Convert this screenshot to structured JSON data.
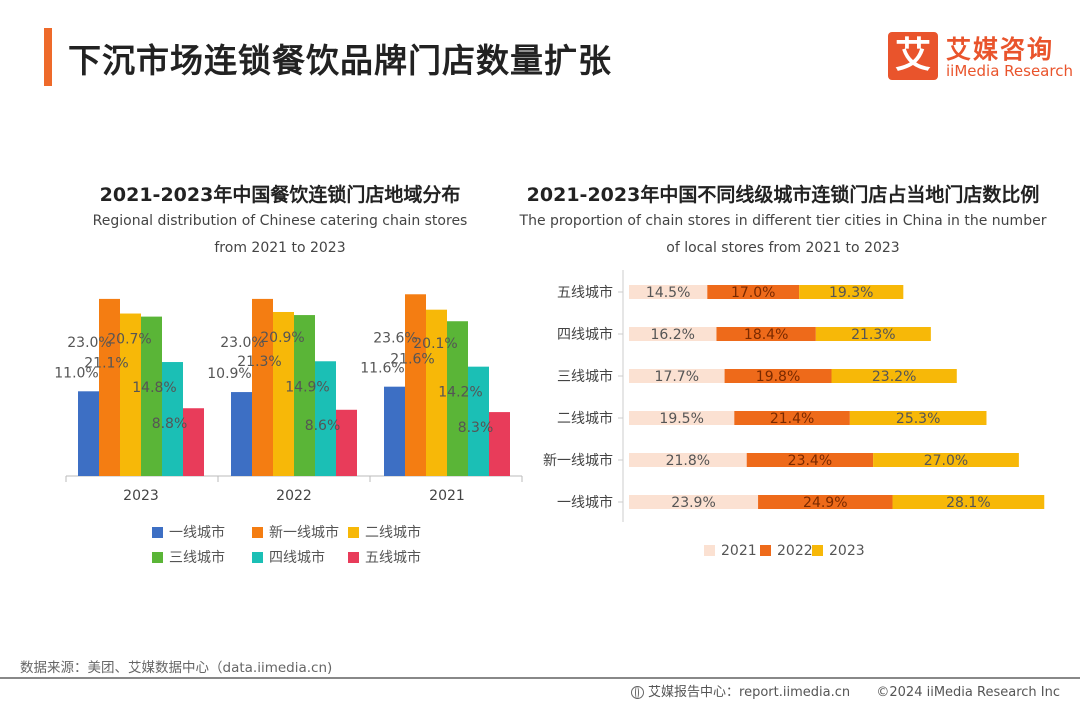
{
  "header": {
    "title": "下沉市场连锁餐饮品牌门店数量扩张",
    "brand_cn": "艾媒咨询",
    "brand_en": "iiMedia Research",
    "brand_glyph": "艾",
    "accent_color": "#ee6a2a"
  },
  "left_chart": {
    "title": "2021-2023年中国餐饮连锁门店地域分布",
    "subtitle_line1": "Regional distribution of Chinese catering chain stores",
    "subtitle_line2": "from 2021 to 2023"
  },
  "right_chart": {
    "title": "2021-2023年中国不同线级城市连锁门店占当地门店数比例",
    "subtitle_line1": "The proportion of chain stores in different tier cities in China in the number",
    "subtitle_line2": "of local stores from 2021 to 2023"
  },
  "chart_data": [
    {
      "type": "bar",
      "categories": [
        "2023",
        "2022",
        "2021"
      ],
      "series": [
        {
          "name": "一线城市",
          "color": "#3d6fc4",
          "values": [
            11.0,
            10.9,
            11.6
          ]
        },
        {
          "name": "新一线城市",
          "color": "#f47d12",
          "values": [
            23.0,
            23.0,
            23.6
          ]
        },
        {
          "name": "二线城市",
          "color": "#f7b808",
          "values": [
            21.1,
            21.3,
            21.6
          ]
        },
        {
          "name": "三线城市",
          "color": "#5ab537",
          "values": [
            20.7,
            20.9,
            20.1
          ]
        },
        {
          "name": "四线城市",
          "color": "#1bbfb5",
          "values": [
            14.8,
            14.9,
            14.2
          ]
        },
        {
          "name": "五线城市",
          "color": "#e83c5a",
          "values": [
            8.8,
            8.6,
            8.3
          ]
        }
      ],
      "value_format": "%",
      "legend_position": "bottom"
    },
    {
      "type": "bar",
      "orientation": "horizontal",
      "stacked": true,
      "categories": [
        "五线城市",
        "四线城市",
        "三线城市",
        "二线城市",
        "新一线城市",
        "一线城市"
      ],
      "series": [
        {
          "name": "2021",
          "color": "#fbe1d2",
          "values": [
            14.5,
            16.2,
            17.7,
            19.5,
            21.8,
            23.9
          ]
        },
        {
          "name": "2022",
          "color": "#ee6a1a",
          "values": [
            17.0,
            18.4,
            19.8,
            21.4,
            23.4,
            24.9
          ]
        },
        {
          "name": "2023",
          "color": "#f7b808",
          "values": [
            19.3,
            21.3,
            23.2,
            25.3,
            27.0,
            28.1
          ]
        }
      ],
      "value_format": "%",
      "legend_position": "bottom"
    }
  ],
  "footer": {
    "source": "数据来源：美团、艾媒数据中心（data.iimedia.cn)",
    "report_center": "艾媒报告中心：report.iimedia.cn",
    "copyright": "©2024  iiMedia Research  Inc"
  }
}
